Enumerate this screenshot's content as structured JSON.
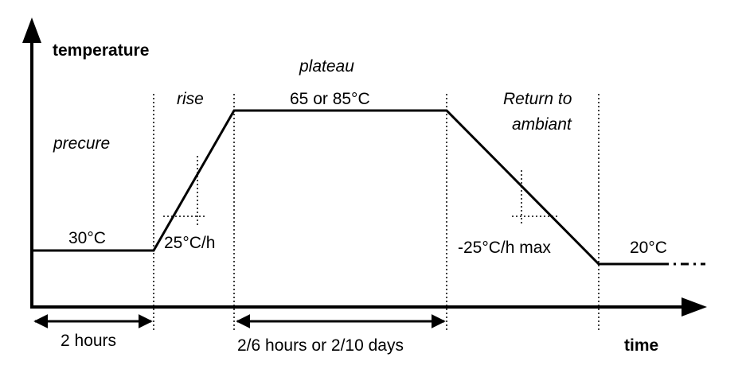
{
  "axes": {
    "y_label": "temperature",
    "x_label": "time"
  },
  "phases": {
    "precure": "precure",
    "rise": "rise",
    "plateau": "plateau",
    "return_line1": "Return to",
    "return_line2": "ambiant"
  },
  "values": {
    "precure_temp": "30°C",
    "rise_rate": "25°C/h",
    "plateau_temp": "65 or 85°C",
    "return_rate": "-25°C/h max",
    "final_temp": "20°C"
  },
  "durations": {
    "precure": "2 hours",
    "plateau": "2/6 hours or 2/10 days"
  }
}
